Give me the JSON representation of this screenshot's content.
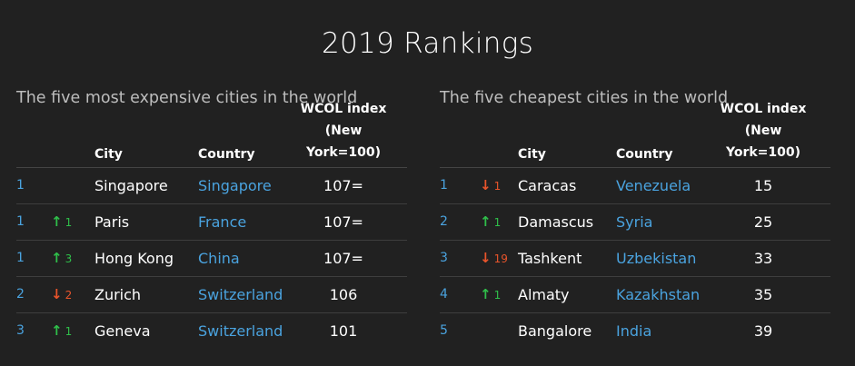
{
  "title": "2019 Rankings",
  "headers": {
    "city": "City",
    "country": "Country",
    "index_line1": "WCOL index",
    "index_line2": "(New York=100)"
  },
  "colors": {
    "background": "#212121",
    "link": "#4aa3df",
    "up": "#2fbf4a",
    "down": "#e8542b"
  },
  "tables": [
    {
      "subtitle": "The five most expensive cities in the world",
      "rows": [
        {
          "rank": "1",
          "change_dir": "",
          "change": "",
          "city": "Singapore",
          "country": "Singapore",
          "index": "107="
        },
        {
          "rank": "1",
          "change_dir": "up",
          "change": "1",
          "city": "Paris",
          "country": "France",
          "index": "107="
        },
        {
          "rank": "1",
          "change_dir": "up",
          "change": "3",
          "city": "Hong Kong",
          "country": "China",
          "index": "107="
        },
        {
          "rank": "2",
          "change_dir": "down",
          "change": "2",
          "city": "Zurich",
          "country": "Switzerland",
          "index": "106"
        },
        {
          "rank": "3",
          "change_dir": "up",
          "change": "1",
          "city": "Geneva",
          "country": "Switzerland",
          "index": "101"
        }
      ]
    },
    {
      "subtitle": "The five cheapest cities in the world",
      "rows": [
        {
          "rank": "1",
          "change_dir": "down",
          "change": "1",
          "city": "Caracas",
          "country": "Venezuela",
          "index": "15"
        },
        {
          "rank": "2",
          "change_dir": "up",
          "change": "1",
          "city": "Damascus",
          "country": "Syria",
          "index": "25"
        },
        {
          "rank": "3",
          "change_dir": "down",
          "change": "19",
          "city": "Tashkent",
          "country": "Uzbekistan",
          "index": "33"
        },
        {
          "rank": "4",
          "change_dir": "up",
          "change": "1",
          "city": "Almaty",
          "country": "Kazakhstan",
          "index": "35"
        },
        {
          "rank": "5",
          "change_dir": "",
          "change": "",
          "city": "Bangalore",
          "country": "India",
          "index": "39"
        }
      ]
    }
  ]
}
